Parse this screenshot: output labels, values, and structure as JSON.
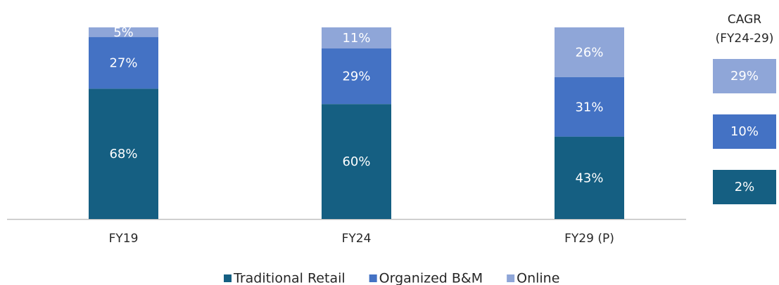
{
  "chart_data": {
    "type": "stacked_bar",
    "categories": [
      "FY19",
      "FY24",
      "FY29 (P)"
    ],
    "ylim": [
      0,
      100
    ],
    "cagr_heading": [
      "CAGR",
      "(FY24-29)"
    ],
    "series": [
      {
        "name": "Traditional Retail",
        "color": "#155f82",
        "values": [
          68,
          60,
          43
        ],
        "value_labels": [
          "68%",
          "60%",
          "43%"
        ],
        "cagr": 2,
        "cagr_label": "2%"
      },
      {
        "name": "Organized B&M",
        "color": "#4472c4",
        "values": [
          27,
          29,
          31
        ],
        "value_labels": [
          "27%",
          "29%",
          "31%"
        ],
        "cagr": 10,
        "cagr_label": "10%"
      },
      {
        "name": "Online",
        "color": "#8fa6d8",
        "values": [
          5,
          11,
          26
        ],
        "value_labels": [
          "5%",
          "11%",
          "26%"
        ],
        "cagr": 29,
        "cagr_label": "29%"
      }
    ]
  }
}
